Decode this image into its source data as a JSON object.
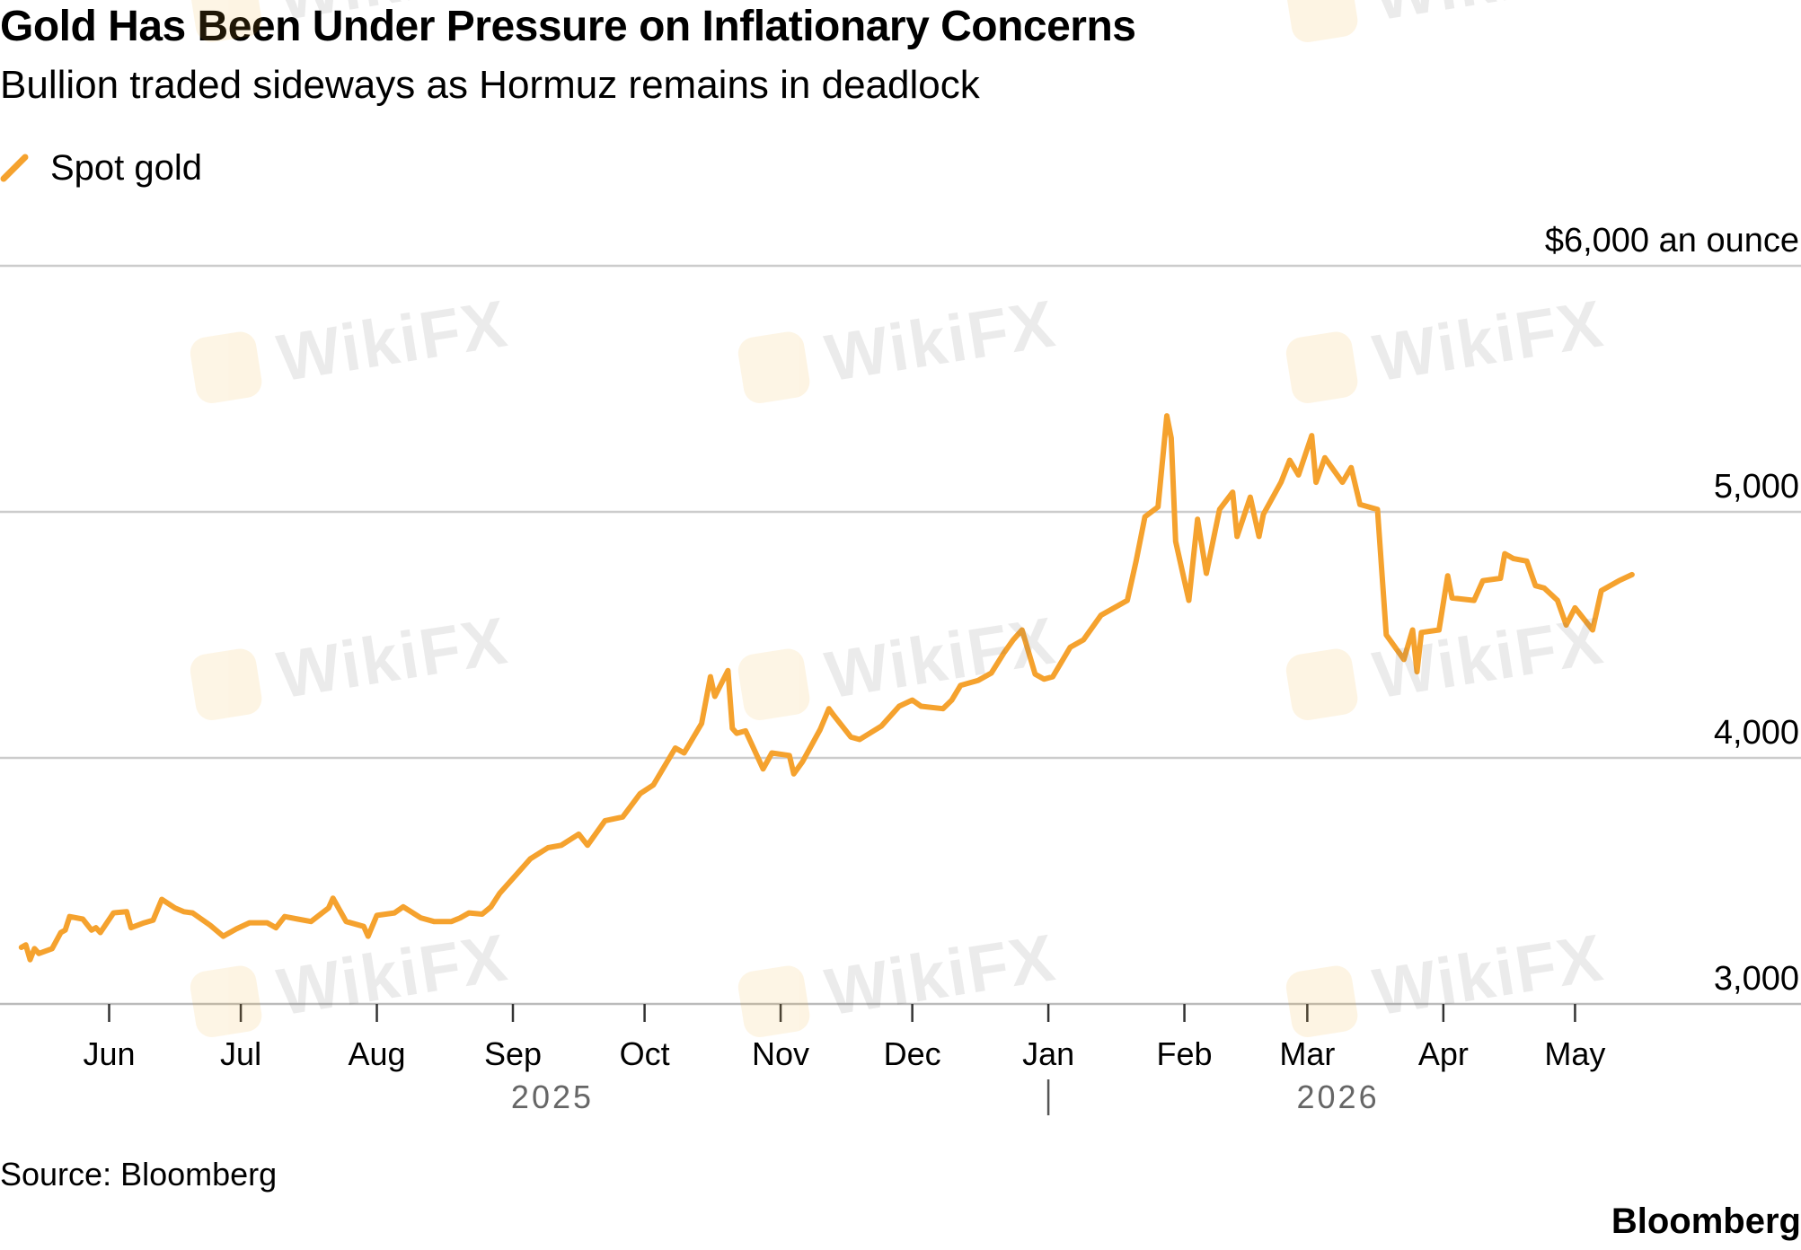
{
  "header": {
    "title": "Gold Has Been Under Pressure on Inflationary Concerns",
    "subtitle": "Bullion traded sideways as Hormuz remains in deadlock"
  },
  "legend": {
    "label": "Spot gold",
    "icon": "line-swatch-icon"
  },
  "footer": {
    "source": "Source: Bloomberg",
    "brand": "Bloomberg"
  },
  "watermark": {
    "text": "WikiFX",
    "icon": "wikifx-logo-icon"
  },
  "colors": {
    "line": "#f5a22e",
    "grid": "#cccccc",
    "axis": "#bbbbbb",
    "text": "#000000",
    "year": "#666666"
  },
  "chart_data": {
    "type": "line",
    "title": "Gold Has Been Under Pressure on Inflationary Concerns",
    "subtitle": "Bullion traded sideways as Hormuz remains in deadlock",
    "series": [
      {
        "name": "Spot gold",
        "points": [
          [
            "2025-05-12",
            3230
          ],
          [
            "2025-05-13",
            3240
          ],
          [
            "2025-05-14",
            3180
          ],
          [
            "2025-05-15",
            3225
          ],
          [
            "2025-05-16",
            3205
          ],
          [
            "2025-05-19",
            3225
          ],
          [
            "2025-05-21",
            3290
          ],
          [
            "2025-05-22",
            3300
          ],
          [
            "2025-05-23",
            3355
          ],
          [
            "2025-05-26",
            3345
          ],
          [
            "2025-05-28",
            3300
          ],
          [
            "2025-05-29",
            3310
          ],
          [
            "2025-05-30",
            3290
          ],
          [
            "2025-06-02",
            3370
          ],
          [
            "2025-06-05",
            3375
          ],
          [
            "2025-06-06",
            3310
          ],
          [
            "2025-06-09",
            3330
          ],
          [
            "2025-06-11",
            3340
          ],
          [
            "2025-06-13",
            3425
          ],
          [
            "2025-06-16",
            3390
          ],
          [
            "2025-06-18",
            3375
          ],
          [
            "2025-06-20",
            3370
          ],
          [
            "2025-06-24",
            3320
          ],
          [
            "2025-06-27",
            3275
          ],
          [
            "2025-06-30",
            3305
          ],
          [
            "2025-07-03",
            3330
          ],
          [
            "2025-07-07",
            3330
          ],
          [
            "2025-07-09",
            3310
          ],
          [
            "2025-07-11",
            3355
          ],
          [
            "2025-07-14",
            3345
          ],
          [
            "2025-07-17",
            3335
          ],
          [
            "2025-07-21",
            3390
          ],
          [
            "2025-07-22",
            3430
          ],
          [
            "2025-07-25",
            3335
          ],
          [
            "2025-07-29",
            3315
          ],
          [
            "2025-07-30",
            3275
          ],
          [
            "2025-08-01",
            3360
          ],
          [
            "2025-08-05",
            3370
          ],
          [
            "2025-08-07",
            3395
          ],
          [
            "2025-08-11",
            3350
          ],
          [
            "2025-08-14",
            3335
          ],
          [
            "2025-08-18",
            3335
          ],
          [
            "2025-08-20",
            3350
          ],
          [
            "2025-08-22",
            3370
          ],
          [
            "2025-08-25",
            3365
          ],
          [
            "2025-08-27",
            3395
          ],
          [
            "2025-08-29",
            3450
          ],
          [
            "2025-09-02",
            3530
          ],
          [
            "2025-09-05",
            3590
          ],
          [
            "2025-09-09",
            3635
          ],
          [
            "2025-09-12",
            3645
          ],
          [
            "2025-09-16",
            3690
          ],
          [
            "2025-09-18",
            3645
          ],
          [
            "2025-09-22",
            3745
          ],
          [
            "2025-09-26",
            3760
          ],
          [
            "2025-09-30",
            3855
          ],
          [
            "2025-10-03",
            3890
          ],
          [
            "2025-10-08",
            4040
          ],
          [
            "2025-10-10",
            4020
          ],
          [
            "2025-10-14",
            4140
          ],
          [
            "2025-10-16",
            4330
          ],
          [
            "2025-10-17",
            4250
          ],
          [
            "2025-10-20",
            4355
          ],
          [
            "2025-10-21",
            4120
          ],
          [
            "2025-10-22",
            4100
          ],
          [
            "2025-10-24",
            4110
          ],
          [
            "2025-10-28",
            3955
          ],
          [
            "2025-10-30",
            4020
          ],
          [
            "2025-11-03",
            4010
          ],
          [
            "2025-11-04",
            3935
          ],
          [
            "2025-11-06",
            3985
          ],
          [
            "2025-11-10",
            4115
          ],
          [
            "2025-11-12",
            4200
          ],
          [
            "2025-11-13",
            4175
          ],
          [
            "2025-11-17",
            4085
          ],
          [
            "2025-11-19",
            4075
          ],
          [
            "2025-11-24",
            4130
          ],
          [
            "2025-11-28",
            4210
          ],
          [
            "2025-12-01",
            4235
          ],
          [
            "2025-12-03",
            4210
          ],
          [
            "2025-12-08",
            4200
          ],
          [
            "2025-12-10",
            4235
          ],
          [
            "2025-12-12",
            4295
          ],
          [
            "2025-12-16",
            4315
          ],
          [
            "2025-12-19",
            4345
          ],
          [
            "2025-12-22",
            4430
          ],
          [
            "2025-12-24",
            4480
          ],
          [
            "2025-12-26",
            4520
          ],
          [
            "2025-12-29",
            4340
          ],
          [
            "2025-12-31",
            4320
          ],
          [
            "2026-01-02",
            4330
          ],
          [
            "2026-01-06",
            4450
          ],
          [
            "2026-01-09",
            4480
          ],
          [
            "2026-01-13",
            4580
          ],
          [
            "2026-01-15",
            4600
          ],
          [
            "2026-01-19",
            4640
          ],
          [
            "2026-01-21",
            4800
          ],
          [
            "2026-01-23",
            4980
          ],
          [
            "2026-01-26",
            5020
          ],
          [
            "2026-01-28",
            5390
          ],
          [
            "2026-01-29",
            5300
          ],
          [
            "2026-01-30",
            4880
          ],
          [
            "2026-02-02",
            4640
          ],
          [
            "2026-02-04",
            4970
          ],
          [
            "2026-02-06",
            4750
          ],
          [
            "2026-02-09",
            5010
          ],
          [
            "2026-02-12",
            5080
          ],
          [
            "2026-02-13",
            4900
          ],
          [
            "2026-02-16",
            5060
          ],
          [
            "2026-02-18",
            4900
          ],
          [
            "2026-02-19",
            4990
          ],
          [
            "2026-02-23",
            5120
          ],
          [
            "2026-02-25",
            5210
          ],
          [
            "2026-02-27",
            5150
          ],
          [
            "2026-03-02",
            5310
          ],
          [
            "2026-03-03",
            5120
          ],
          [
            "2026-03-05",
            5220
          ],
          [
            "2026-03-09",
            5120
          ],
          [
            "2026-03-11",
            5180
          ],
          [
            "2026-03-13",
            5030
          ],
          [
            "2026-03-17",
            5010
          ],
          [
            "2026-03-19",
            4500
          ],
          [
            "2026-03-23",
            4400
          ],
          [
            "2026-03-25",
            4520
          ],
          [
            "2026-03-26",
            4350
          ],
          [
            "2026-03-27",
            4510
          ],
          [
            "2026-03-31",
            4520
          ],
          [
            "2026-04-02",
            4740
          ],
          [
            "2026-04-03",
            4650
          ],
          [
            "2026-04-08",
            4640
          ],
          [
            "2026-04-10",
            4720
          ],
          [
            "2026-04-14",
            4730
          ],
          [
            "2026-04-15",
            4830
          ],
          [
            "2026-04-17",
            4810
          ],
          [
            "2026-04-20",
            4800
          ],
          [
            "2026-04-22",
            4700
          ],
          [
            "2026-04-24",
            4690
          ],
          [
            "2026-04-27",
            4640
          ],
          [
            "2026-04-29",
            4540
          ],
          [
            "2026-05-01",
            4610
          ],
          [
            "2026-05-05",
            4520
          ],
          [
            "2026-05-07",
            4680
          ],
          [
            "2026-05-11",
            4720
          ],
          [
            "2026-05-14",
            4745
          ]
        ]
      }
    ],
    "y_axis": {
      "range": [
        3000,
        6000
      ],
      "ticks": [
        {
          "value": 6000,
          "label": "$6,000 an ounce"
        },
        {
          "value": 5000,
          "label": "5,000"
        },
        {
          "value": 4000,
          "label": "4,000"
        },
        {
          "value": 3000,
          "label": "3,000"
        }
      ],
      "position": "right",
      "grid": true
    },
    "x_axis": {
      "range": [
        "2025-05-10",
        "2026-05-31"
      ],
      "ticks": [
        {
          "date": "2025-06-01",
          "label": "Jun"
        },
        {
          "date": "2025-07-01",
          "label": "Jul"
        },
        {
          "date": "2025-08-01",
          "label": "Aug"
        },
        {
          "date": "2025-09-01",
          "label": "Sep"
        },
        {
          "date": "2025-10-01",
          "label": "Oct"
        },
        {
          "date": "2025-11-01",
          "label": "Nov"
        },
        {
          "date": "2025-12-01",
          "label": "Dec"
        },
        {
          "date": "2026-01-01",
          "label": "Jan"
        },
        {
          "date": "2026-02-01",
          "label": "Feb"
        },
        {
          "date": "2026-03-01",
          "label": "Mar"
        },
        {
          "date": "2026-04-01",
          "label": "Apr"
        },
        {
          "date": "2026-05-01",
          "label": "May"
        }
      ],
      "years": [
        {
          "label": "2025",
          "center": "2025-09-10"
        },
        {
          "label": "2026",
          "center": "2026-03-08"
        }
      ],
      "year_divider": "2026-01-01"
    },
    "legend_position": "top-left"
  }
}
